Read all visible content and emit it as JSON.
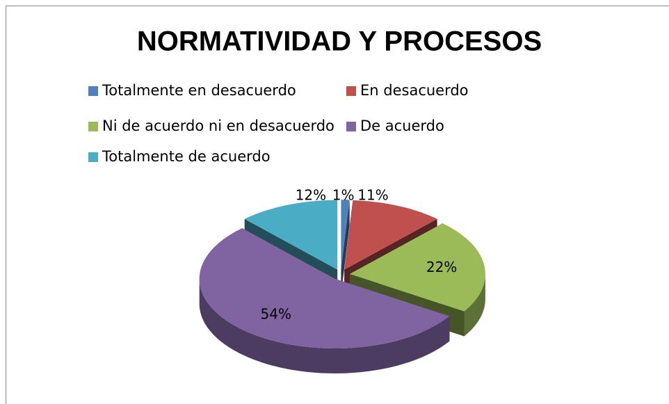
{
  "chart_data": {
    "type": "pie",
    "title": "NORMATIVIDAD Y PROCESOS",
    "categories": [
      "Totalmente en desacuerdo",
      "En desacuerdo",
      "Ni de acuerdo ni en desacuerdo",
      "De acuerdo",
      "Totalmente de acuerdo"
    ],
    "values": [
      1,
      11,
      22,
      54,
      12
    ],
    "value_labels": [
      "1%",
      "11%",
      "22%",
      "54%",
      "12%"
    ],
    "colors": [
      "#4f81bd",
      "#c0504d",
      "#9bbb59",
      "#8064a2",
      "#4bacc6"
    ],
    "legend": "top"
  }
}
